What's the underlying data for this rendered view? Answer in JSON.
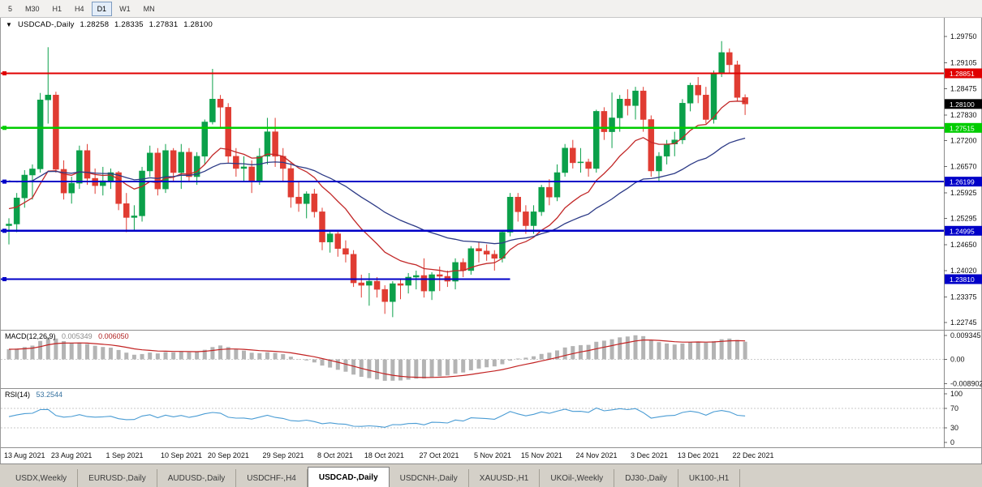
{
  "toolbar": {
    "timeframes": [
      "5",
      "M30",
      "H1",
      "H4",
      "D1",
      "W1",
      "MN"
    ],
    "active": "D1"
  },
  "chart_header": {
    "menu_arrow": "▼",
    "symbol": "USDCAD-,Daily",
    "open": "1.28258",
    "high": "1.28335",
    "low": "1.27831",
    "close": "1.28100"
  },
  "price_axis_labels": [
    "1.29750",
    "1.29105",
    "1.28475",
    "1.27830",
    "1.27200",
    "1.26570",
    "1.25925",
    "1.25295",
    "1.24650",
    "1.24020",
    "1.23375",
    "1.22745"
  ],
  "macd_panel": {
    "title": "MACD(12,26,9)",
    "main_value": "0.005349",
    "signal_value": "0.006050",
    "axis_labels": [
      "0.009345",
      "0.00",
      "-0.008902"
    ]
  },
  "rsi_panel": {
    "title": "RSI(14)",
    "value": "53.2544",
    "axis_labels": [
      "100",
      "70",
      "30",
      "0"
    ]
  },
  "date_axis": {
    "labels": [
      "13 Aug 2021",
      "23 Aug 2021",
      "1 Sep 2021",
      "10 Sep 2021",
      "20 Sep 2021",
      "29 Sep 2021",
      "8 Oct 2021",
      "18 Oct 2021",
      "27 Oct 2021",
      "5 Nov 2021",
      "15 Nov 2021",
      "24 Nov 2021",
      "3 Dec 2021",
      "13 Dec 2021",
      "22 Dec 2021"
    ],
    "tick_indices": [
      0,
      6,
      13,
      20,
      26,
      33,
      40,
      46,
      53,
      60,
      66,
      73,
      80,
      86,
      93
    ]
  },
  "tabs": {
    "items": [
      "USDX,Weekly",
      "EURUSD-,Daily",
      "AUDUSD-,Daily",
      "USDCHF-,H4",
      "USDCAD-,Daily",
      "USDCNH-,Daily",
      "XAUUSD-,H1",
      "UKOil-,Weekly",
      "DJ30-,Daily",
      "UK100-,H1"
    ],
    "active": "USDCAD-,Daily"
  },
  "chart_data": {
    "type": "candlestick",
    "symbol": "USDCAD-",
    "period": "Daily",
    "price_range_estimate": [
      1.2257,
      1.3021
    ],
    "up_color": "#0ba04a",
    "down_color": "#e03c32",
    "ohlc": [
      [
        1.2512,
        1.253,
        1.2466,
        1.2516
      ],
      [
        1.2516,
        1.2592,
        1.2496,
        1.258
      ],
      [
        1.258,
        1.2648,
        1.2556,
        1.2636
      ],
      [
        1.2636,
        1.2662,
        1.2576,
        1.2651
      ],
      [
        1.2651,
        1.2837,
        1.2642,
        1.282
      ],
      [
        1.282,
        1.2949,
        1.2762,
        1.2832
      ],
      [
        1.2832,
        1.284,
        1.2642,
        1.265
      ],
      [
        1.265,
        1.2672,
        1.2576,
        1.2592
      ],
      [
        1.2592,
        1.2632,
        1.2566,
        1.2616
      ],
      [
        1.2616,
        1.2708,
        1.2602,
        1.2696
      ],
      [
        1.2696,
        1.2712,
        1.2612,
        1.2628
      ],
      [
        1.2628,
        1.2652,
        1.259,
        1.261
      ],
      [
        1.261,
        1.2656,
        1.2586,
        1.2622
      ],
      [
        1.2622,
        1.2652,
        1.2602,
        1.2642
      ],
      [
        1.2642,
        1.2646,
        1.255,
        1.2566
      ],
      [
        1.2566,
        1.2592,
        1.2496,
        1.2532
      ],
      [
        1.2532,
        1.2562,
        1.2502,
        1.2536
      ],
      [
        1.2536,
        1.2656,
        1.2522,
        1.2646
      ],
      [
        1.2646,
        1.2708,
        1.2632,
        1.269
      ],
      [
        1.269,
        1.2702,
        1.2586,
        1.2602
      ],
      [
        1.2602,
        1.2712,
        1.2592,
        1.2696
      ],
      [
        1.2696,
        1.2702,
        1.2622,
        1.2642
      ],
      [
        1.2642,
        1.2712,
        1.2602,
        1.2692
      ],
      [
        1.2692,
        1.2702,
        1.2622,
        1.2632
      ],
      [
        1.2632,
        1.2692,
        1.2612,
        1.2682
      ],
      [
        1.2682,
        1.2772,
        1.2662,
        1.2766
      ],
      [
        1.2766,
        1.2896,
        1.276,
        1.2822
      ],
      [
        1.2822,
        1.2832,
        1.2752,
        1.2802
      ],
      [
        1.2802,
        1.2812,
        1.2666,
        1.2682
      ],
      [
        1.2682,
        1.2702,
        1.2632,
        1.2652
      ],
      [
        1.2652,
        1.2682,
        1.2622,
        1.2656
      ],
      [
        1.2656,
        1.2672,
        1.2592,
        1.2622
      ],
      [
        1.2622,
        1.2702,
        1.2612,
        1.2682
      ],
      [
        1.2682,
        1.2776,
        1.2662,
        1.2742
      ],
      [
        1.2742,
        1.2776,
        1.2656,
        1.2682
      ],
      [
        1.2682,
        1.2702,
        1.2622,
        1.2652
      ],
      [
        1.2652,
        1.2666,
        1.2556,
        1.2582
      ],
      [
        1.2582,
        1.2622,
        1.2546,
        1.2566
      ],
      [
        1.2566,
        1.2596,
        1.253,
        1.259
      ],
      [
        1.259,
        1.2602,
        1.2532,
        1.2546
      ],
      [
        1.2546,
        1.2556,
        1.2452,
        1.2472
      ],
      [
        1.2472,
        1.2502,
        1.2446,
        1.2492
      ],
      [
        1.2492,
        1.2502,
        1.2436,
        1.2456
      ],
      [
        1.2456,
        1.2476,
        1.2422,
        1.2442
      ],
      [
        1.2442,
        1.2452,
        1.2362,
        1.2372
      ],
      [
        1.2372,
        1.2392,
        1.2336,
        1.2366
      ],
      [
        1.2366,
        1.2396,
        1.2316,
        1.2376
      ],
      [
        1.2376,
        1.2386,
        1.2336,
        1.2356
      ],
      [
        1.2356,
        1.2366,
        1.2296,
        1.2326
      ],
      [
        1.2326,
        1.2376,
        1.2288,
        1.237
      ],
      [
        1.237,
        1.2382,
        1.2332,
        1.2366
      ],
      [
        1.2366,
        1.2396,
        1.2346,
        1.2386
      ],
      [
        1.2386,
        1.2402,
        1.2356,
        1.239
      ],
      [
        1.239,
        1.2432,
        1.2336,
        1.2352
      ],
      [
        1.2352,
        1.2398,
        1.233,
        1.2392
      ],
      [
        1.2392,
        1.2412,
        1.2352,
        1.2388
      ],
      [
        1.2388,
        1.2402,
        1.2362,
        1.2376
      ],
      [
        1.2376,
        1.2432,
        1.2356,
        1.2422
      ],
      [
        1.2422,
        1.2432,
        1.2386,
        1.2402
      ],
      [
        1.2402,
        1.2462,
        1.2392,
        1.2456
      ],
      [
        1.2456,
        1.2472,
        1.2422,
        1.245
      ],
      [
        1.245,
        1.2466,
        1.2426,
        1.2442
      ],
      [
        1.2442,
        1.2452,
        1.2402,
        1.2432
      ],
      [
        1.2432,
        1.2502,
        1.2422,
        1.2496
      ],
      [
        1.2496,
        1.2592,
        1.2486,
        1.2582
      ],
      [
        1.2582,
        1.2592,
        1.2522,
        1.2546
      ],
      [
        1.2546,
        1.2562,
        1.2492,
        1.2512
      ],
      [
        1.2512,
        1.2562,
        1.2492,
        1.2546
      ],
      [
        1.2546,
        1.2612,
        1.2536,
        1.2606
      ],
      [
        1.2606,
        1.2626,
        1.2562,
        1.2582
      ],
      [
        1.2582,
        1.2662,
        1.2572,
        1.2642
      ],
      [
        1.2642,
        1.2712,
        1.2632,
        1.2702
      ],
      [
        1.2702,
        1.2722,
        1.2652,
        1.2666
      ],
      [
        1.2666,
        1.2702,
        1.2642,
        1.2668
      ],
      [
        1.2668,
        1.2676,
        1.2632,
        1.2652
      ],
      [
        1.2652,
        1.2796,
        1.2642,
        1.2792
      ],
      [
        1.2792,
        1.2802,
        1.2722,
        1.2742
      ],
      [
        1.2742,
        1.2838,
        1.2702,
        1.2776
      ],
      [
        1.2776,
        1.2832,
        1.2742,
        1.2822
      ],
      [
        1.2822,
        1.2846,
        1.2782,
        1.2806
      ],
      [
        1.2806,
        1.2852,
        1.2772,
        1.2842
      ],
      [
        1.2842,
        1.2852,
        1.2742,
        1.2772
      ],
      [
        1.2772,
        1.2782,
        1.2632,
        1.2646
      ],
      [
        1.2646,
        1.2692,
        1.2622,
        1.2682
      ],
      [
        1.2682,
        1.2722,
        1.2662,
        1.2712
      ],
      [
        1.2712,
        1.2742,
        1.2682,
        1.2722
      ],
      [
        1.2722,
        1.2822,
        1.2712,
        1.2812
      ],
      [
        1.2812,
        1.2862,
        1.2792,
        1.2856
      ],
      [
        1.2856,
        1.2876,
        1.2812,
        1.2832
      ],
      [
        1.2832,
        1.2852,
        1.2762,
        1.2772
      ],
      [
        1.2772,
        1.2892,
        1.2762,
        1.2886
      ],
      [
        1.2886,
        1.2964,
        1.2876,
        1.2936
      ],
      [
        1.2936,
        1.2946,
        1.2886,
        1.2906
      ],
      [
        1.2906,
        1.2916,
        1.2816,
        1.2826
      ],
      [
        1.28258,
        1.28335,
        1.27831,
        1.281
      ]
    ],
    "overlays": [
      {
        "name": "ma-fast-line",
        "type": "ema",
        "period": 13,
        "seed": 1.256,
        "color": "#c22828"
      },
      {
        "name": "ma-slow-line",
        "type": "ema",
        "period": 34,
        "seed": 1.2628,
        "color": "#2c3a86"
      }
    ],
    "levels": [
      {
        "price": 1.28851,
        "label": "1.28851",
        "color": "#e00000",
        "width": 1.6,
        "extent": 1
      },
      {
        "price": 1.27515,
        "label": "1.27515",
        "color": "#00cc00",
        "width": 2.6,
        "extent": 1
      },
      {
        "price": 1.26199,
        "label": "1.26199",
        "color": "#0000c8",
        "width": 2.2,
        "extent": 1
      },
      {
        "price": 1.24995,
        "label": "1.24995",
        "color": "#0000c8",
        "width": 2.2,
        "extent": 1
      },
      {
        "price": 1.2381,
        "label": "1.23810",
        "color": "#0000c8",
        "width": 2.2,
        "extent": 0.54
      }
    ],
    "current_price": 1.281,
    "macd": {
      "fast": 12,
      "slow": 26,
      "signal": 9,
      "histogram_color": "#b4b4b4",
      "signal_color": "#c22222",
      "range": [
        -0.01055,
        0.01055
      ]
    },
    "rsi": {
      "period": 14,
      "color": "#4a9cd4",
      "range": [
        0,
        100
      ],
      "guides": [
        70,
        30
      ]
    }
  }
}
